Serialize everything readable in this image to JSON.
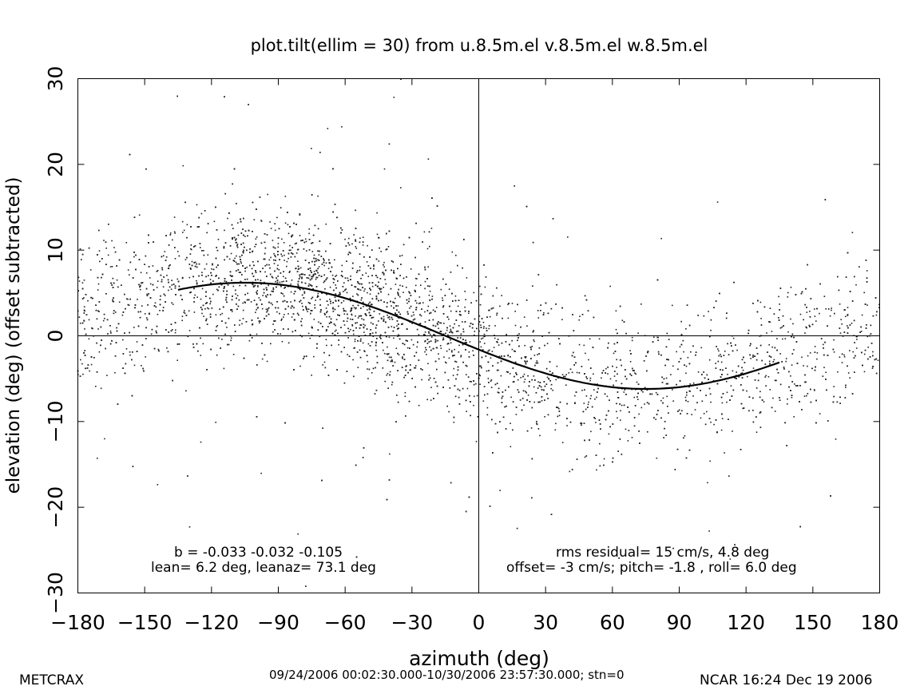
{
  "chart_data": {
    "type": "scatter",
    "title": "plot.tilt(ellim = 30) from u.8.5m.el v.8.5m.el w.8.5m.el",
    "xlabel": "azimuth (deg)",
    "ylabel": "elevation (deg)  (offset subtracted)",
    "xlim": [
      -180,
      180
    ],
    "ylim": [
      -30,
      30
    ],
    "xticks": [
      "-180",
      "-150",
      "-120",
      "-90",
      "-60",
      "-30",
      "0",
      "30",
      "60",
      "90",
      "120",
      "150",
      "180"
    ],
    "yticks": [
      "-30",
      "-20",
      "-10",
      "0",
      "10",
      "20",
      "30"
    ],
    "grid": false,
    "reference_lines": {
      "x": 0,
      "y": 0
    },
    "fit_curve": {
      "amplitude_deg": 6.2,
      "azimuth_of_min_deg": 75,
      "x_range": [
        -135,
        135
      ]
    },
    "scatter": {
      "approx_points": 6000,
      "noise_sd_deg": 4.8,
      "outlier_fraction": 0.06
    },
    "annotations_left": [
      "b = -0.033 -0.032 -0.105",
      "lean= 6.2 deg, leanaz= 73.1 deg"
    ],
    "annotations_right": [
      "rms residual= 15 cm/s, 4.8 deg",
      "offset= -3 cm/s; pitch= -1.8 , roll=  6.0 deg"
    ]
  },
  "footer": {
    "project": "METCRAX",
    "time_range": "09/24/2006 00:02:30.000-10/30/2006 23:57:30.000; stn=0",
    "stamp": "NCAR 16:24 Dec 19 2006"
  }
}
